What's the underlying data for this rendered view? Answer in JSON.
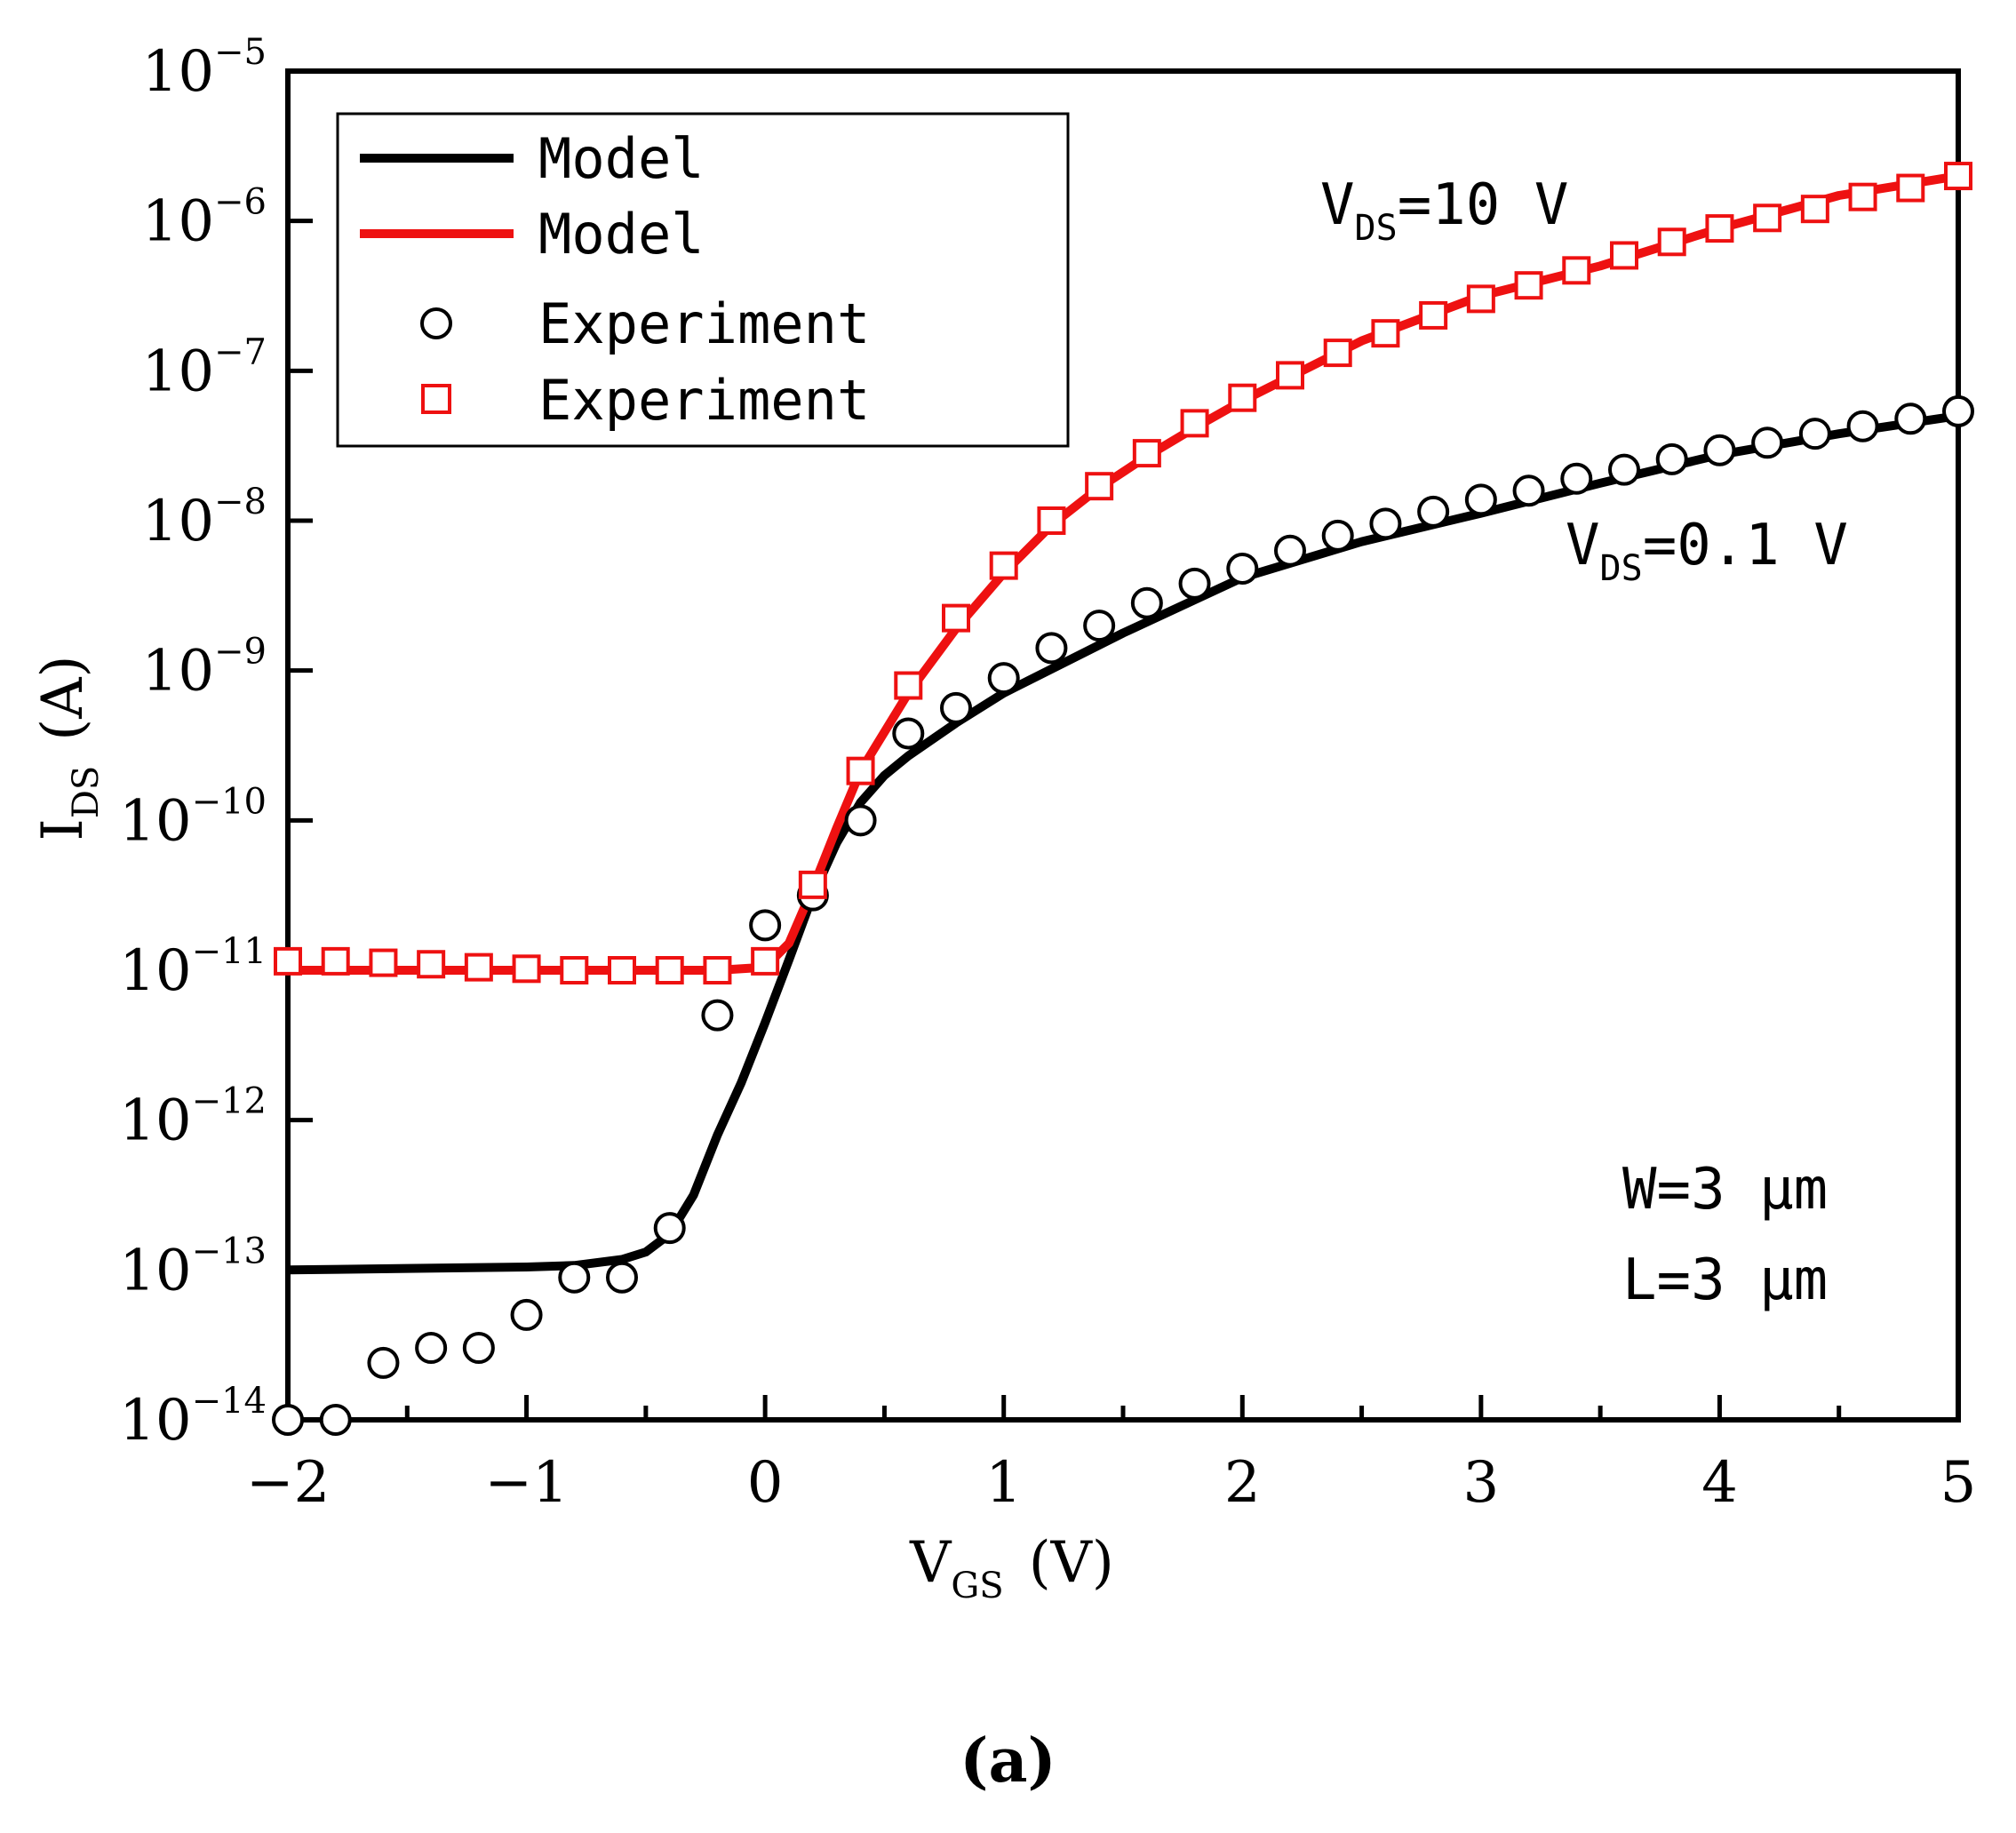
{
  "chart_data": {
    "type": "line",
    "panel_label": "(a)",
    "xlabel": {
      "main": "V",
      "sub": "GS",
      "unit": "(V)"
    },
    "ylabel": {
      "main": "I",
      "sub": "DS",
      "unit": "(A)"
    },
    "xlim": [
      -2,
      5
    ],
    "ylim_log10": [
      -14,
      -5
    ],
    "y_scale": "log",
    "x_ticks": [
      -2,
      -1,
      0,
      1,
      2,
      3,
      4,
      5
    ],
    "x_tick_labels": [
      "−2",
      "−1",
      "0",
      "1",
      "2",
      "3",
      "4",
      "5"
    ],
    "y_tick_exponents": [
      -14,
      -13,
      -12,
      -11,
      -10,
      -9,
      -8,
      -7,
      -6,
      -5
    ],
    "y_tick_exponent_labels": [
      "−14",
      "−13",
      "−12",
      "−11",
      "−10",
      "−9",
      "−8",
      "−7",
      "−6",
      "−5"
    ],
    "y_tick_base": "10",
    "legend": {
      "position": "top-left",
      "entries": [
        {
          "label": "Model",
          "style": "line",
          "color": "#000000"
        },
        {
          "label": "Model",
          "style": "line",
          "color": "#ee1111"
        },
        {
          "label": "Experiment",
          "style": "circle",
          "color": "#000000"
        },
        {
          "label": "Experiment",
          "style": "square",
          "color": "#ee1111"
        }
      ]
    },
    "annotations": {
      "vds_high": {
        "main": "V",
        "sub": "DS",
        "rest": "=10 V"
      },
      "vds_low": {
        "main": "V",
        "sub": "DS",
        "rest": "=0.1 V"
      },
      "width": "W=3 μm",
      "length": "L=3 μm"
    },
    "series": [
      {
        "name": "Model V_DS=0.1 V",
        "kind": "line",
        "color": "#000000",
        "x": [
          -2.0,
          -1.5,
          -1.0,
          -0.8,
          -0.6,
          -0.5,
          -0.4,
          -0.3,
          -0.2,
          -0.1,
          0.0,
          0.1,
          0.2,
          0.3,
          0.4,
          0.5,
          0.6,
          0.8,
          1.0,
          1.5,
          2.0,
          2.5,
          3.0,
          3.5,
          4.0,
          4.5,
          5.0
        ],
        "y_log10": [
          -13.0,
          -12.99,
          -12.98,
          -12.97,
          -12.93,
          -12.88,
          -12.76,
          -12.5,
          -12.1,
          -11.75,
          -11.35,
          -10.93,
          -10.5,
          -10.15,
          -9.88,
          -9.7,
          -9.57,
          -9.35,
          -9.15,
          -8.75,
          -8.38,
          -8.14,
          -7.95,
          -7.75,
          -7.56,
          -7.42,
          -7.3
        ]
      },
      {
        "name": "Model V_DS=10 V",
        "kind": "line",
        "color": "#ee1111",
        "x": [
          -2.0,
          -1.5,
          -1.0,
          -0.5,
          -0.2,
          0.0,
          0.1,
          0.2,
          0.3,
          0.4,
          0.6,
          0.8,
          1.0,
          1.2,
          1.4,
          1.6,
          1.8,
          2.0,
          2.5,
          3.0,
          3.5,
          4.0,
          4.5,
          5.0
        ],
        "y_log10": [
          -11.0,
          -11.0,
          -11.0,
          -11.0,
          -11.0,
          -10.98,
          -10.82,
          -10.45,
          -10.05,
          -9.67,
          -9.15,
          -8.72,
          -8.35,
          -8.03,
          -7.78,
          -7.57,
          -7.38,
          -7.2,
          -6.8,
          -6.5,
          -6.3,
          -6.05,
          -5.83,
          -5.7
        ]
      },
      {
        "name": "Experiment V_DS=0.1 V",
        "kind": "scatter",
        "marker": "circle",
        "color": "#000000",
        "x": [
          -2.0,
          -1.8,
          -1.6,
          -1.4,
          -1.2,
          -1.0,
          -0.8,
          -0.6,
          -0.4,
          -0.2,
          0.0,
          0.2,
          0.4,
          0.6,
          0.8,
          1.0,
          1.2,
          1.4,
          1.6,
          1.8,
          2.0,
          2.2,
          2.4,
          2.6,
          2.8,
          3.0,
          3.2,
          3.4,
          3.6,
          3.8,
          4.0,
          4.2,
          4.4,
          4.6,
          4.8,
          5.0
        ],
        "y_log10": [
          -14.0,
          -14.0,
          -13.62,
          -13.52,
          -13.52,
          -13.3,
          -13.05,
          -13.05,
          -12.72,
          -11.3,
          -10.7,
          -10.5,
          -10.0,
          -9.42,
          -9.25,
          -9.05,
          -8.85,
          -8.7,
          -8.55,
          -8.42,
          -8.32,
          -8.2,
          -8.1,
          -8.02,
          -7.94,
          -7.86,
          -7.8,
          -7.72,
          -7.66,
          -7.59,
          -7.53,
          -7.48,
          -7.42,
          -7.37,
          -7.32,
          -7.27
        ]
      },
      {
        "name": "Experiment V_DS=10 V",
        "kind": "scatter",
        "marker": "square",
        "color": "#ee1111",
        "x": [
          -2.0,
          -1.8,
          -1.6,
          -1.4,
          -1.2,
          -1.0,
          -0.8,
          -0.6,
          -0.4,
          -0.2,
          0.0,
          0.2,
          0.4,
          0.6,
          0.8,
          1.0,
          1.2,
          1.4,
          1.6,
          1.8,
          2.0,
          2.2,
          2.4,
          2.6,
          2.8,
          3.0,
          3.2,
          3.4,
          3.6,
          3.8,
          4.0,
          4.2,
          4.4,
          4.6,
          4.8,
          5.0
        ],
        "y_log10": [
          -10.94,
          -10.94,
          -10.95,
          -10.96,
          -10.98,
          -10.99,
          -11.0,
          -11.0,
          -11.0,
          -11.0,
          -10.94,
          -10.43,
          -9.67,
          -9.1,
          -8.65,
          -8.3,
          -8.0,
          -7.77,
          -7.55,
          -7.35,
          -7.18,
          -7.03,
          -6.88,
          -6.75,
          -6.63,
          -6.52,
          -6.43,
          -6.33,
          -6.23,
          -6.14,
          -6.05,
          -5.98,
          -5.92,
          -5.84,
          -5.78,
          -5.7
        ]
      }
    ]
  }
}
